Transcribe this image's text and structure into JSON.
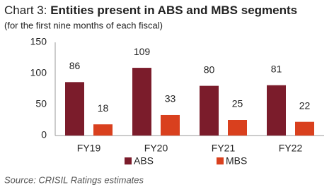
{
  "chart_data": {
    "type": "bar",
    "title_label": "Chart 3:",
    "title": "Entities present in ABS and MBS segments",
    "subtitle": "(for the first nine months of each fiscal)",
    "categories": [
      "FY19",
      "FY20",
      "FY21",
      "FY22"
    ],
    "series": [
      {
        "name": "ABS",
        "color": "#7b1c2b",
        "values": [
          86,
          109,
          80,
          81
        ]
      },
      {
        "name": "MBS",
        "color": "#d9401e",
        "values": [
          18,
          33,
          25,
          22
        ]
      }
    ],
    "ylim": [
      0,
      150
    ],
    "yticks": [
      0,
      50,
      100,
      150
    ],
    "grid": false,
    "legend": "bottom",
    "source": "Source: CRISIL Ratings estimates"
  }
}
